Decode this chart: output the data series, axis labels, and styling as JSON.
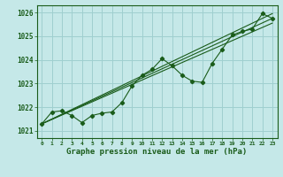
{
  "background_color": "#c5e8e8",
  "grid_color": "#9fcfcf",
  "line_color": "#1a5c1a",
  "title": "Graphe pression niveau de la mer (hPa)",
  "ylabel_ticks": [
    1021,
    1022,
    1023,
    1024,
    1025,
    1026
  ],
  "xlim": [
    -0.5,
    23.5
  ],
  "ylim": [
    1020.7,
    1026.3
  ],
  "series": [
    [
      0,
      1021.3
    ],
    [
      1,
      1021.8
    ],
    [
      2,
      1021.85
    ],
    [
      3,
      1021.65
    ],
    [
      4,
      1021.35
    ],
    [
      5,
      1021.65
    ],
    [
      6,
      1021.75
    ],
    [
      7,
      1021.8
    ],
    [
      8,
      1022.2
    ],
    [
      9,
      1022.9
    ],
    [
      10,
      1023.35
    ],
    [
      11,
      1023.6
    ],
    [
      12,
      1024.05
    ],
    [
      13,
      1023.75
    ],
    [
      14,
      1023.35
    ],
    [
      15,
      1023.1
    ],
    [
      16,
      1023.05
    ],
    [
      17,
      1023.85
    ],
    [
      18,
      1024.45
    ],
    [
      19,
      1025.05
    ],
    [
      20,
      1025.2
    ],
    [
      21,
      1025.3
    ],
    [
      22,
      1025.95
    ],
    [
      23,
      1025.75
    ]
  ],
  "trend_lines": [
    [
      [
        0,
        1021.3
      ],
      [
        23,
        1025.75
      ]
    ],
    [
      [
        0,
        1021.3
      ],
      [
        23,
        1025.95
      ]
    ],
    [
      [
        0,
        1021.3
      ],
      [
        23,
        1025.55
      ]
    ]
  ],
  "xtick_labels": [
    "0",
    "1",
    "2",
    "3",
    "4",
    "5",
    "6",
    "7",
    "8",
    "9",
    "10",
    "11",
    "12",
    "13",
    "14",
    "15",
    "16",
    "17",
    "18",
    "19",
    "20",
    "21",
    "22",
    "23"
  ]
}
